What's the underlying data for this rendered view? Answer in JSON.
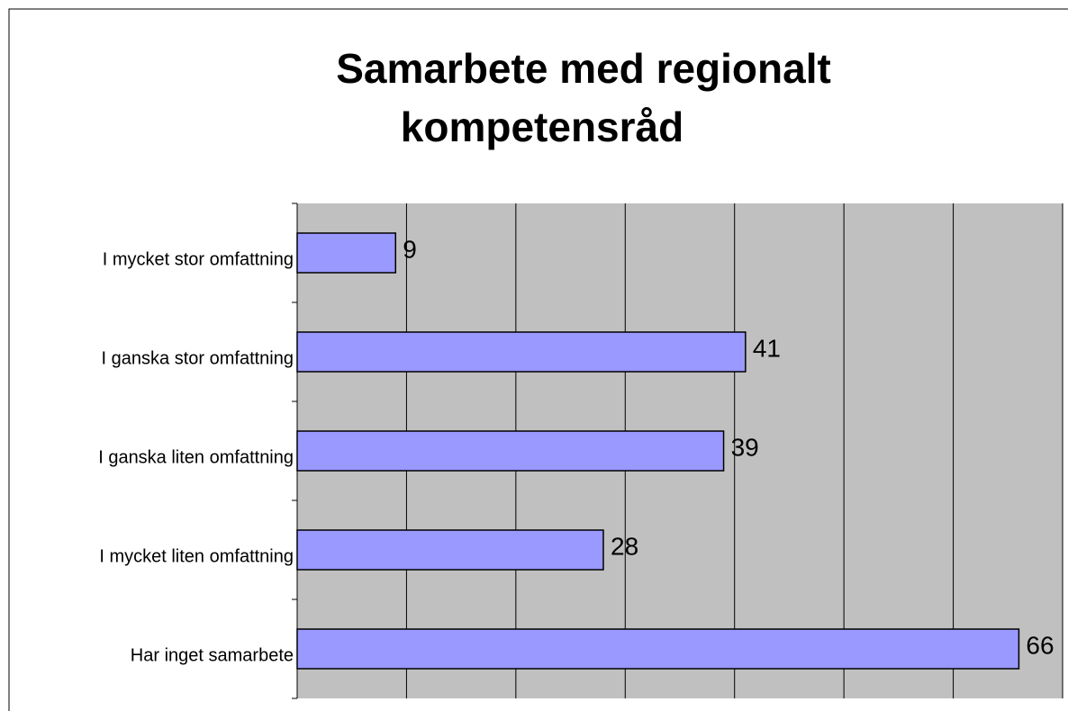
{
  "chart_data": {
    "type": "bar",
    "orientation": "horizontal",
    "title": [
      "Samarbete med regionalt",
      "kompetensråd"
    ],
    "categories": [
      "I mycket stor omfattning",
      "I ganska stor omfattning",
      "I ganska liten omfattning",
      "I mycket liten omfattning",
      "Har inget samarbete"
    ],
    "values": [
      9,
      41,
      39,
      28,
      66
    ],
    "color": "#9999ff",
    "xlim": [
      0,
      70
    ],
    "xticks": [
      0,
      10,
      20,
      30,
      40,
      50,
      60,
      70
    ],
    "grid": true
  }
}
